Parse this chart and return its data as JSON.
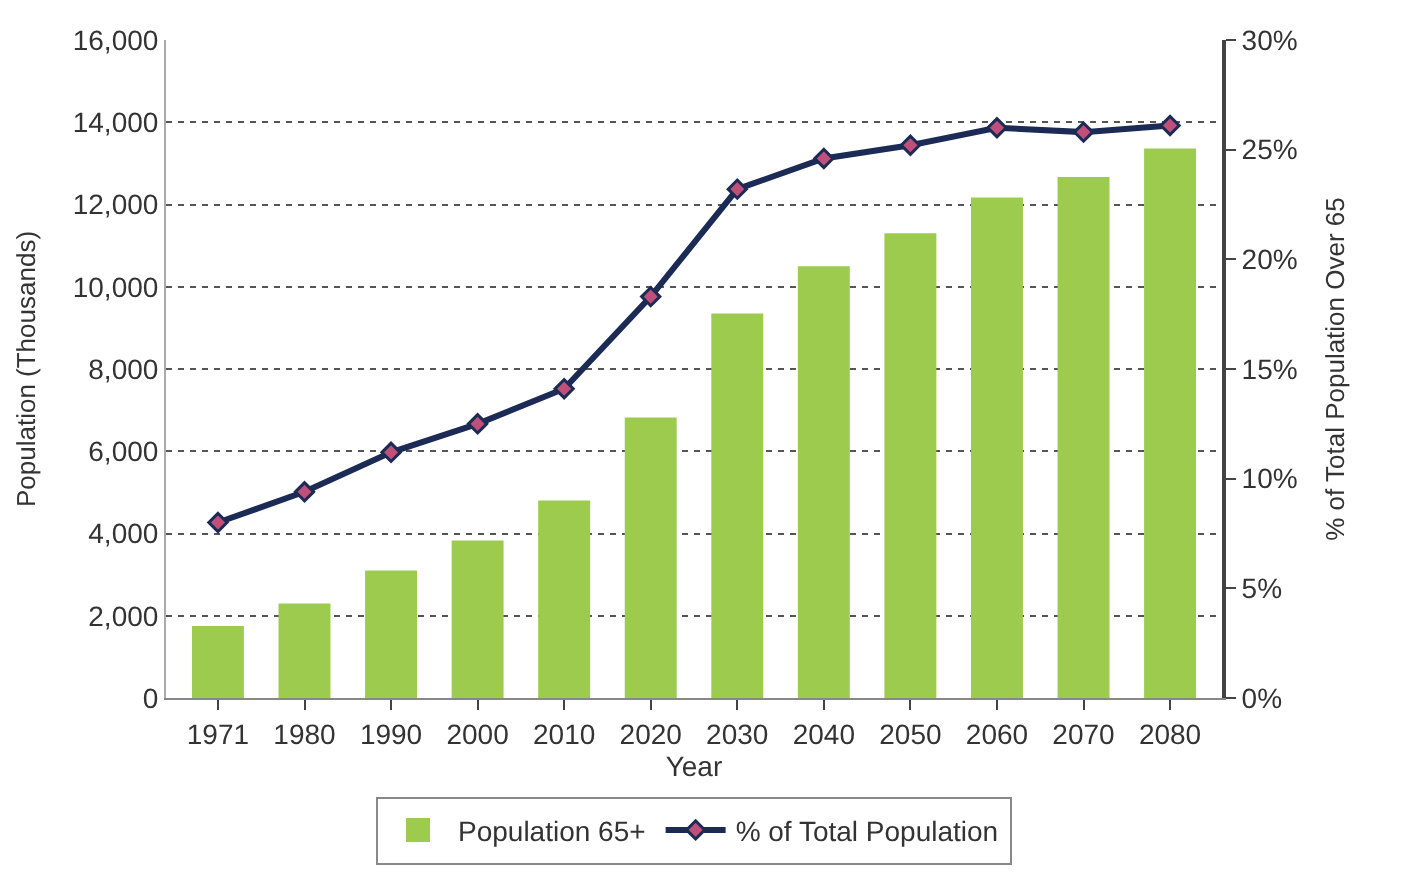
{
  "chart_data": {
    "type": "bar",
    "xlabel": "Year",
    "ylabel": "Population (Thousands)",
    "y2label": "% of Total Population Over 65",
    "categories": [
      "1971",
      "1980",
      "1990",
      "2000",
      "2010",
      "2020",
      "2030",
      "2040",
      "2050",
      "2060",
      "2070",
      "2080"
    ],
    "series": [
      {
        "name": "Population 65+",
        "color": "#9ccb4e",
        "values": [
          1750,
          2300,
          3100,
          3830,
          4800,
          6820,
          9350,
          10500,
          11300,
          12170,
          12670,
          13360
        ]
      },
      {
        "name": "% of Total Population",
        "type": "line",
        "axis": "y2",
        "color": "#1c2b55",
        "marker": "diamond",
        "values": [
          8.0,
          9.4,
          11.2,
          12.5,
          14.1,
          18.3,
          23.2,
          24.6,
          25.2,
          26.0,
          25.8,
          26.1
        ]
      }
    ],
    "ylim": [
      0,
      16000
    ],
    "yticks": [
      {
        "value": 0,
        "label": "0"
      },
      {
        "value": 2000,
        "label": "2,000"
      },
      {
        "value": 4000,
        "label": "4,000"
      },
      {
        "value": 6000,
        "label": "6,000"
      },
      {
        "value": 8000,
        "label": "8,000"
      },
      {
        "value": 10000,
        "label": "10,000"
      },
      {
        "value": 12000,
        "label": "12,000"
      },
      {
        "value": 14000,
        "label": "14,000"
      },
      {
        "value": 16000,
        "label": "16,000"
      }
    ],
    "y2lim": [
      0,
      30
    ],
    "y2ticks": [
      {
        "value": 0,
        "label": "0%"
      },
      {
        "value": 5,
        "label": "5%"
      },
      {
        "value": 10,
        "label": "10%"
      },
      {
        "value": 15,
        "label": "15%"
      },
      {
        "value": 20,
        "label": "20%"
      },
      {
        "value": 25,
        "label": "25%"
      },
      {
        "value": 30,
        "label": "30%"
      }
    ],
    "grid": "y",
    "legend": "bottom"
  }
}
